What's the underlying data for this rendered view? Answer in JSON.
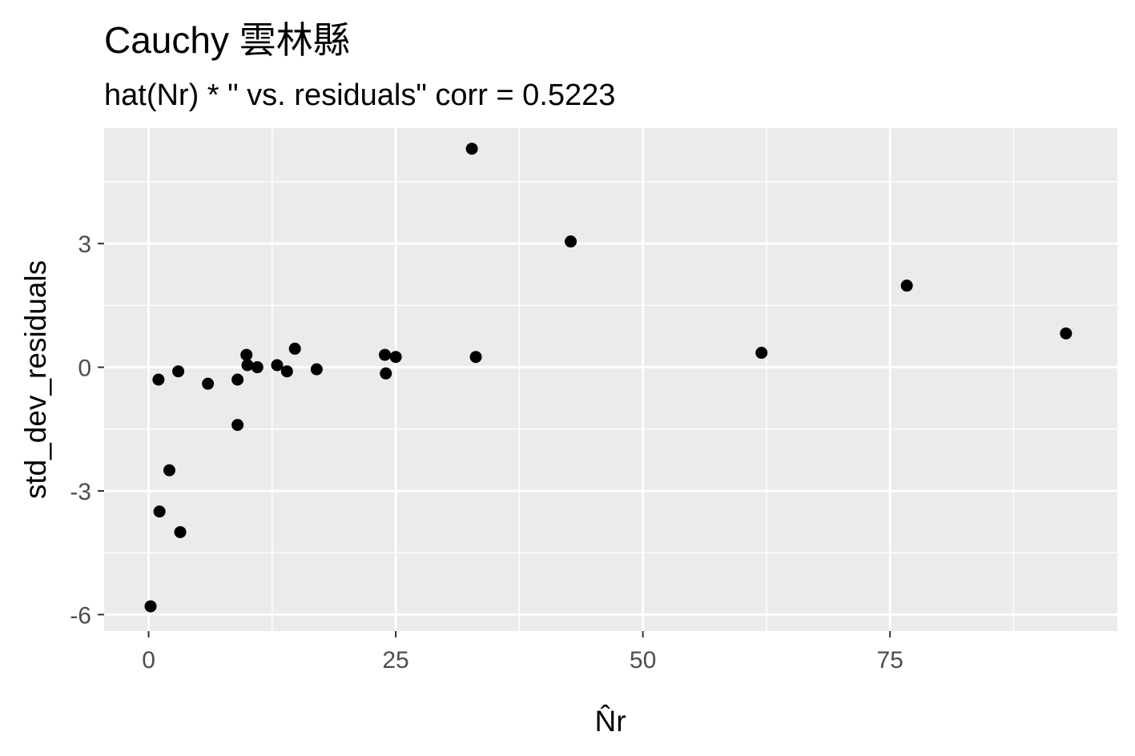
{
  "chart_data": {
    "type": "scatter",
    "title": "Cauchy 雲林縣",
    "subtitle": "hat(Nr) * \"  vs. residuals\" corr = 0.5223",
    "xlabel": "N̂r",
    "ylabel": "std_dev_residuals",
    "xlim": [
      -4.5,
      98
    ],
    "ylim": [
      -6.4,
      5.8
    ],
    "x_ticks": [
      0,
      25,
      50,
      75
    ],
    "x_tick_labels": [
      "0",
      "25",
      "50",
      "75"
    ],
    "y_ticks": [
      -6,
      -3,
      0,
      3
    ],
    "y_tick_labels": [
      "-6",
      "-3",
      "0",
      "3"
    ],
    "x_minor": [
      12.5,
      37.5,
      62.5,
      87.5
    ],
    "y_minor": [
      -4.5,
      -1.5,
      1.5,
      4.5
    ],
    "grid": true,
    "panel_background": "#ebebeb",
    "grid_color": "#ffffff",
    "point_color": "#000000",
    "points": [
      {
        "x": 0.2,
        "y": -5.8
      },
      {
        "x": 1.0,
        "y": -0.3
      },
      {
        "x": 1.1,
        "y": -3.5
      },
      {
        "x": 2.1,
        "y": -2.5
      },
      {
        "x": 3.0,
        "y": -0.1
      },
      {
        "x": 3.2,
        "y": -4.0
      },
      {
        "x": 6.0,
        "y": -0.4
      },
      {
        "x": 9.0,
        "y": -0.3
      },
      {
        "x": 9.0,
        "y": -1.4
      },
      {
        "x": 9.9,
        "y": 0.3
      },
      {
        "x": 10.0,
        "y": 0.05
      },
      {
        "x": 11.0,
        "y": 0.0
      },
      {
        "x": 13.0,
        "y": 0.05
      },
      {
        "x": 14.0,
        "y": -0.1
      },
      {
        "x": 14.8,
        "y": 0.45
      },
      {
        "x": 17.0,
        "y": -0.05
      },
      {
        "x": 23.9,
        "y": 0.3
      },
      {
        "x": 24.0,
        "y": -0.15
      },
      {
        "x": 25.0,
        "y": 0.25
      },
      {
        "x": 32.7,
        "y": 5.3
      },
      {
        "x": 33.1,
        "y": 0.25
      },
      {
        "x": 42.7,
        "y": 3.05
      },
      {
        "x": 62.0,
        "y": 0.35
      },
      {
        "x": 76.7,
        "y": 1.98
      },
      {
        "x": 92.8,
        "y": 0.82
      }
    ]
  }
}
